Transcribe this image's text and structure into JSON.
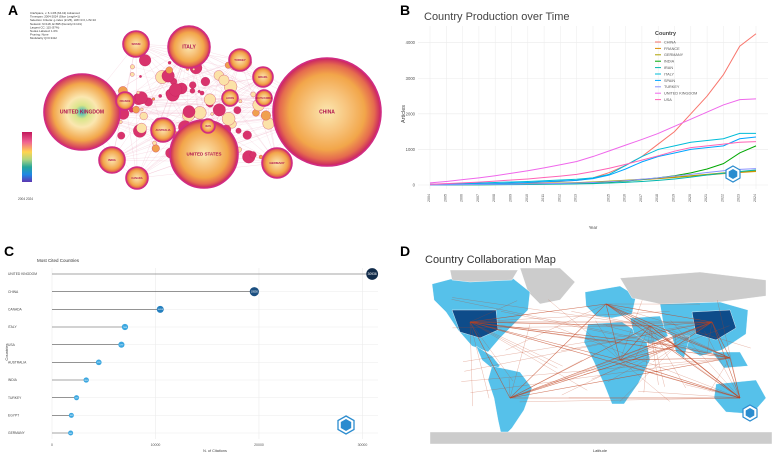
{
  "panels": {
    "a": "A",
    "b": "B",
    "c": "C",
    "d": "D"
  },
  "colors": {
    "grid": "#ebebeb",
    "bubble_hot": "#e23a7a",
    "bubble_mid": "#f2a64a",
    "bubble_pale": "#fbe7b0",
    "map_land": "#cccccc",
    "map_collab_light": "#56c1ea",
    "map_collab_dark": "#0e4c8a",
    "map_link": "#c0401c",
    "lollipop_line": "#555555",
    "lollipop_dark": "#112b4a",
    "lollipop_light": "#3ba7e0"
  },
  "network": {
    "header_lines": [
      "CiteSpace, v. 6.1.R6 (64-bit) Advanced",
      "Timespan: 2004-2024 (Slice Length=1)",
      "Selection Criteria: g-index (k=25), LRF=3.0, L/N=10",
      "Network: N=118, E=695 (Density=0.101)",
      "Largest CC: 115 (97%)",
      "Nodes Labeled: 1.0%",
      "Pruning: None",
      "Modularity Q=0.3412"
    ],
    "legend_label": "2004 2024",
    "nodes": [
      {
        "name": "UNITED KINGDOM",
        "label": "UNITED KINGDOM"
      },
      {
        "name": "CHINA",
        "label": "CHINA"
      },
      {
        "name": "ITALY",
        "label": "ITALY"
      },
      {
        "name": "UNITED STATES",
        "label": "UNITED STATES"
      },
      {
        "name": "SPAIN",
        "label": "SPAIN"
      },
      {
        "name": "TURKEY",
        "label": "TURKEY"
      },
      {
        "name": "GERMANY",
        "label": "GERMANY"
      },
      {
        "name": "FRANCE",
        "label": "FRANCE"
      },
      {
        "name": "INDIA",
        "label": "INDIA"
      },
      {
        "name": "BRAZIL",
        "label": "BRAZIL"
      },
      {
        "name": "CANADA",
        "label": "CANADA"
      },
      {
        "name": "AUSTRALIA",
        "label": "AUSTRALIA"
      },
      {
        "name": "JAPAN",
        "label": "JAPAN"
      },
      {
        "name": "IRAN",
        "label": "IRAN"
      },
      {
        "name": "SOUTH KOREA",
        "label": "SOUTH KOREA"
      }
    ]
  },
  "chart_data": [
    {
      "type": "line",
      "title": "Country Production over Time",
      "xlabel": "Year",
      "ylabel": "Articles",
      "legend_title": "Country",
      "x": [
        2004,
        2005,
        2006,
        2007,
        2008,
        2009,
        2010,
        2011,
        2012,
        2013,
        2014,
        2015,
        2016,
        2017,
        2018,
        2019,
        2020,
        2021,
        2022,
        2023,
        2024
      ],
      "xtick_labels": [
        "2004",
        "2005",
        "2006",
        "2007",
        "2008",
        "2009",
        "2010",
        "2011",
        "2012",
        "2013",
        "2015",
        "2016",
        "2017",
        "2018",
        "2019",
        "2020",
        "2021",
        "2022",
        "2023",
        "2024"
      ],
      "ylim": [
        0,
        4300
      ],
      "yticks": [
        0,
        1000,
        2000,
        3000,
        4000
      ],
      "series": [
        {
          "name": "CHINA",
          "color": "#f8766d",
          "values": [
            10,
            15,
            20,
            30,
            40,
            50,
            60,
            80,
            100,
            130,
            200,
            350,
            550,
            800,
            1150,
            1500,
            2000,
            2500,
            3100,
            3900,
            4250
          ]
        },
        {
          "name": "FRANCE",
          "color": "#db8e00",
          "values": [
            5,
            8,
            10,
            15,
            20,
            25,
            30,
            40,
            50,
            60,
            80,
            100,
            120,
            150,
            180,
            210,
            250,
            280,
            320,
            350,
            380
          ]
        },
        {
          "name": "GERMANY",
          "color": "#aea200",
          "values": [
            5,
            8,
            12,
            18,
            25,
            30,
            38,
            45,
            55,
            65,
            85,
            110,
            135,
            160,
            190,
            220,
            260,
            300,
            340,
            370,
            400
          ]
        },
        {
          "name": "INDIA",
          "color": "#00a802",
          "values": [
            2,
            4,
            6,
            8,
            10,
            14,
            18,
            24,
            30,
            40,
            55,
            80,
            110,
            150,
            200,
            260,
            340,
            450,
            600,
            900,
            1100
          ]
        },
        {
          "name": "IRAN",
          "color": "#00b7ae",
          "values": [
            2,
            4,
            6,
            8,
            10,
            12,
            15,
            20,
            25,
            30,
            40,
            55,
            75,
            100,
            130,
            170,
            220,
            280,
            330,
            380,
            420
          ]
        },
        {
          "name": "ITALY",
          "color": "#00bcd8",
          "values": [
            20,
            30,
            40,
            55,
            70,
            85,
            100,
            120,
            140,
            160,
            200,
            300,
            550,
            800,
            1000,
            1100,
            1200,
            1250,
            1300,
            1450,
            1450
          ]
        },
        {
          "name": "SPAIN",
          "color": "#00a5ff",
          "values": [
            10,
            15,
            20,
            30,
            40,
            55,
            70,
            90,
            110,
            130,
            180,
            280,
            450,
            650,
            800,
            900,
            1000,
            1050,
            1100,
            1300,
            1350
          ]
        },
        {
          "name": "TURKEY",
          "color": "#8b93ff",
          "values": [
            5,
            8,
            12,
            16,
            20,
            25,
            30,
            38,
            45,
            55,
            70,
            90,
            120,
            160,
            200,
            250,
            300,
            350,
            400,
            440,
            460
          ]
        },
        {
          "name": "UNITED KINGDOM",
          "color": "#ef67eb",
          "values": [
            60,
            100,
            150,
            200,
            260,
            330,
            400,
            480,
            570,
            660,
            800,
            960,
            1120,
            1280,
            1450,
            1650,
            1850,
            2050,
            2250,
            2400,
            2420
          ]
        },
        {
          "name": "USA",
          "color": "#ff63b6",
          "values": [
            20,
            40,
            60,
            80,
            110,
            140,
            170,
            210,
            250,
            300,
            380,
            470,
            580,
            700,
            820,
            950,
            1050,
            1100,
            1150,
            1200,
            1220
          ]
        }
      ]
    },
    {
      "type": "lollipop",
      "title": "Most Cited Countries",
      "xlabel": "N. of Citations",
      "ylabel": "Countries",
      "xlim": [
        0,
        31500
      ],
      "xticks": [
        0,
        10000,
        20000,
        30000
      ],
      "xtick_labels": [
        "0",
        "10000",
        "20000",
        "30000"
      ],
      "categories": [
        "UNITED KINGDOM",
        "CHINA",
        "CANADA",
        "ITALY",
        "USA",
        "AUSTRALIA",
        "INDIA",
        "TURKEY",
        "EGYPT",
        "GERMANY"
      ],
      "values": [
        30936,
        19550,
        10458,
        7048,
        6707,
        4519,
        3305,
        2370,
        1870,
        1801
      ],
      "value_labels": [
        "30936",
        "19550",
        "10458",
        "7048",
        "6707",
        "4519",
        "3305",
        "2370",
        "1870",
        "1801"
      ]
    },
    {
      "type": "map",
      "title": "Country Collaboration Map",
      "xlabel": "Latitude"
    }
  ]
}
